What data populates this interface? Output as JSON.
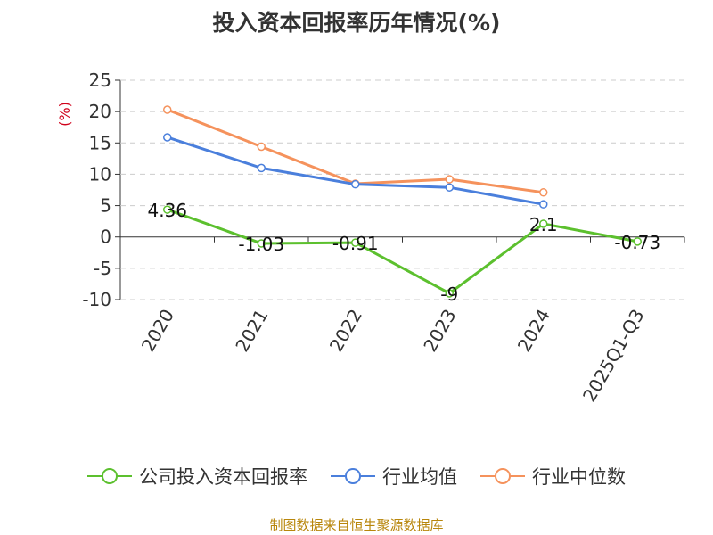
{
  "title": "投入资本回报率历年情况(%)",
  "source": "制图数据来自恒生聚源数据库",
  "chart_data": {
    "type": "line",
    "title": "投入资本回报率历年情况(%)",
    "ylabel": "(%)",
    "ylim": [
      -10,
      25
    ],
    "yticks": [
      -10,
      -5,
      0,
      5,
      10,
      15,
      20,
      25
    ],
    "categories": [
      "2020",
      "2021",
      "2022",
      "2023",
      "2024",
      "2025Q1-Q3"
    ],
    "grid": true,
    "legend_position": "bottom",
    "series": [
      {
        "name": "公司投入资本回报率",
        "color": "#5cc02e",
        "values": [
          4.36,
          -1.03,
          -0.91,
          -9,
          2.1,
          -0.73
        ],
        "labels": [
          "4.36",
          "-1.03",
          "-0.91",
          "-9",
          "2.1",
          "-0.73"
        ]
      },
      {
        "name": "行业均值",
        "color": "#4a7fdc",
        "values": [
          15.9,
          11.0,
          8.4,
          7.9,
          5.2,
          null
        ],
        "labels": null
      },
      {
        "name": "行业中位数",
        "color": "#f5925c",
        "values": [
          20.3,
          14.4,
          8.5,
          9.2,
          7.1,
          null
        ],
        "labels": null
      }
    ]
  }
}
